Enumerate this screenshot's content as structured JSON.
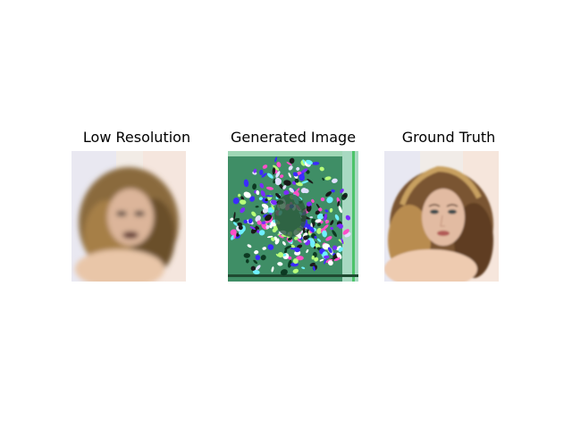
{
  "panels": [
    {
      "title": "Low Resolution",
      "image": "blurry-portrait-curly-blonde-hair"
    },
    {
      "title": "Generated Image",
      "image": "noisy-colorful-artifact-portrait"
    },
    {
      "title": "Ground Truth",
      "image": "sharp-portrait-curly-blonde-hair"
    }
  ]
}
